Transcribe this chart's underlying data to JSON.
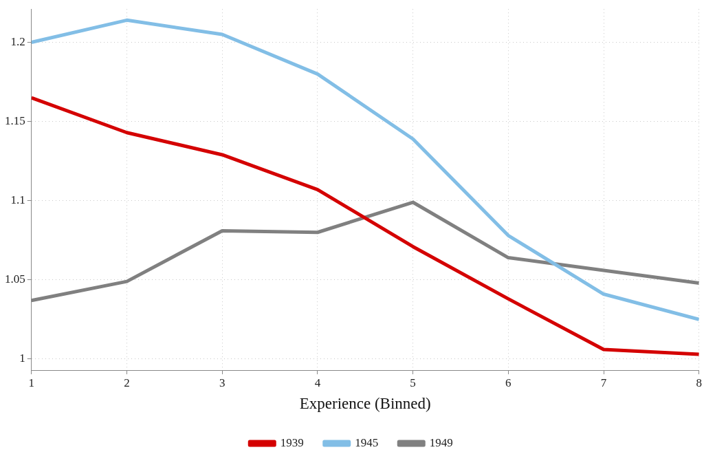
{
  "chart_data": {
    "type": "line",
    "xlabel": "Experience (Binned)",
    "x": [
      1,
      2,
      3,
      4,
      5,
      6,
      7,
      8
    ],
    "series": [
      {
        "name": "1939",
        "color": "#d40000",
        "values": [
          1.165,
          1.143,
          1.129,
          1.107,
          1.071,
          1.038,
          1.006,
          1.003
        ]
      },
      {
        "name": "1945",
        "color": "#82bee6",
        "values": [
          1.2,
          1.214,
          1.205,
          1.18,
          1.139,
          1.078,
          1.041,
          1.025
        ]
      },
      {
        "name": "1949",
        "color": "#808080",
        "values": [
          1.037,
          1.049,
          1.081,
          1.08,
          1.099,
          1.064,
          1.056,
          1.048
        ]
      }
    ],
    "xlim": [
      1,
      8
    ],
    "xticks": [
      1,
      2,
      3,
      4,
      5,
      6,
      7,
      8
    ],
    "ylim": [
      0.993,
      1.221
    ],
    "yticks": [
      1,
      1.05,
      1.1,
      1.15,
      1.2
    ],
    "grid": true,
    "legend": "bottom",
    "marker": "none",
    "line_style": "solid"
  }
}
